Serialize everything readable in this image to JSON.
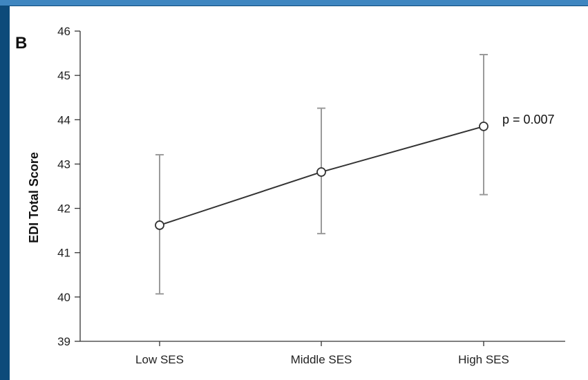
{
  "panel_label": "B",
  "chart_data": {
    "type": "line",
    "categories": [
      "Low SES",
      "Middle SES",
      "High SES"
    ],
    "values": [
      41.62,
      42.82,
      43.85
    ],
    "error_low": [
      40.07,
      41.43,
      42.31
    ],
    "error_high": [
      43.21,
      44.26,
      45.47
    ],
    "ylabel": "EDI Total Score",
    "xlabel": "",
    "ylim": [
      39,
      46
    ],
    "yticks": [
      39,
      40,
      41,
      42,
      43,
      44,
      45,
      46
    ],
    "annotation": "p = 0.007",
    "grid": false,
    "colors": {
      "line": "#333333",
      "errorbar": "#9a9a9a",
      "marker_fill": "#ffffff",
      "axis": "#333333"
    }
  }
}
